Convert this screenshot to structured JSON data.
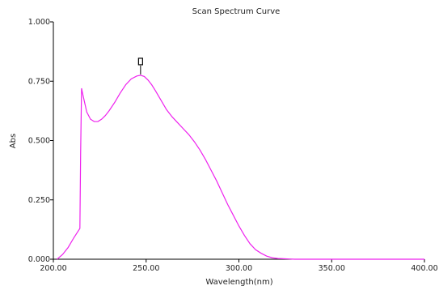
{
  "chart_data": {
    "type": "line",
    "title": "Scan Spectrum Curve",
    "xlabel": "Wavelength(nm)",
    "ylabel": "Abs",
    "xlim": [
      200,
      400
    ],
    "ylim": [
      0,
      1
    ],
    "x_ticks": [
      "200.00",
      "250.00",
      "300.00",
      "350.00",
      "400.00"
    ],
    "y_ticks": [
      "0.000",
      "0.250",
      "0.500",
      "0.750",
      "1.000"
    ],
    "grid": false,
    "series": [
      {
        "color": "#ee22ee",
        "x": [
          202,
          205,
          208,
          211,
          213.5,
          214.3,
          214.7,
          215.2,
          216,
          218,
          220,
          222,
          224,
          226,
          228,
          230,
          233,
          236,
          239,
          242,
          245,
          247,
          249,
          251,
          253,
          255,
          258,
          261,
          264,
          267,
          270,
          273,
          276,
          279,
          282,
          285,
          288,
          291,
          294,
          297,
          300,
          303,
          306,
          309,
          312,
          315,
          318,
          321,
          324,
          327,
          330,
          333,
          336,
          340,
          345,
          350,
          360,
          370,
          380,
          390,
          400
        ],
        "y": [
          0.0,
          0.02,
          0.05,
          0.09,
          0.12,
          0.13,
          0.45,
          0.72,
          0.69,
          0.62,
          0.59,
          0.58,
          0.58,
          0.59,
          0.605,
          0.625,
          0.66,
          0.7,
          0.735,
          0.76,
          0.772,
          0.775,
          0.77,
          0.755,
          0.735,
          0.71,
          0.67,
          0.63,
          0.6,
          0.575,
          0.55,
          0.525,
          0.495,
          0.46,
          0.42,
          0.375,
          0.33,
          0.28,
          0.23,
          0.185,
          0.14,
          0.1,
          0.065,
          0.04,
          0.025,
          0.013,
          0.006,
          0.003,
          0.002,
          0.001,
          0.0,
          0.0,
          0.0,
          0.0,
          0.0,
          0.0,
          0.0,
          0.0,
          0.0,
          0.0,
          0.0
        ]
      }
    ],
    "annotations": [
      {
        "type": "peak-marker",
        "x": 247,
        "y": 0.775
      }
    ]
  }
}
